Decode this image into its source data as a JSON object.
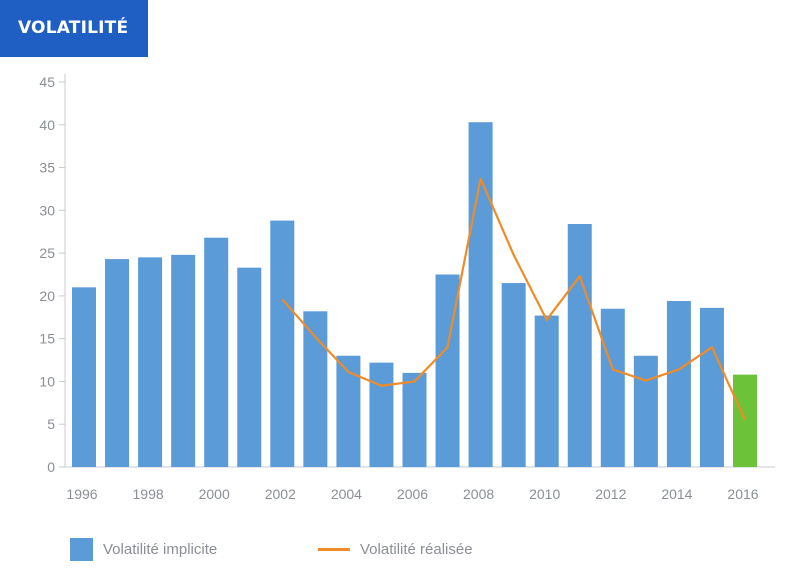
{
  "title": "VOLATILITÉ",
  "colors": {
    "bar": "#5b9bd8",
    "bar_highlight": "#6cc33a",
    "line": "#ef8c27",
    "title_bg": "#1f5fc4",
    "axis": "#c8cbd0"
  },
  "chart_data": {
    "type": "bar",
    "categories": [
      "1996",
      "1997",
      "1998",
      "1999",
      "2000",
      "2001",
      "2002",
      "2003",
      "2004",
      "2005",
      "2006",
      "2007",
      "2008",
      "2009",
      "2010",
      "2011",
      "2012",
      "2013",
      "2014",
      "2015",
      "2016"
    ],
    "x_tick_labels": [
      "1996",
      "1998",
      "2000",
      "2002",
      "2004",
      "2006",
      "2008",
      "2010",
      "2012",
      "2014",
      "2016"
    ],
    "y_tick_labels": [
      "0",
      "5",
      "10",
      "15",
      "20",
      "25",
      "30",
      "35",
      "40",
      "45"
    ],
    "ylim": [
      0,
      45
    ],
    "series": [
      {
        "name": "Volatilité implicite",
        "type": "bar",
        "values": [
          21.0,
          24.3,
          24.5,
          24.8,
          26.8,
          23.3,
          28.8,
          18.2,
          13.0,
          12.2,
          11.0,
          22.5,
          40.3,
          21.5,
          17.7,
          28.4,
          18.5,
          13.0,
          19.4,
          18.6,
          10.8
        ],
        "highlight_last": true
      },
      {
        "name": "Volatilité réalisée",
        "type": "line",
        "values": [
          null,
          null,
          null,
          null,
          null,
          null,
          19.6,
          15.2,
          11.1,
          9.5,
          10.0,
          14.0,
          33.7,
          24.8,
          17.2,
          22.3,
          11.4,
          10.1,
          11.4,
          14.0,
          5.5
        ]
      }
    ]
  },
  "legend": {
    "bar_label": "Volatilité implicite",
    "line_label": "Volatilité réalisée"
  }
}
